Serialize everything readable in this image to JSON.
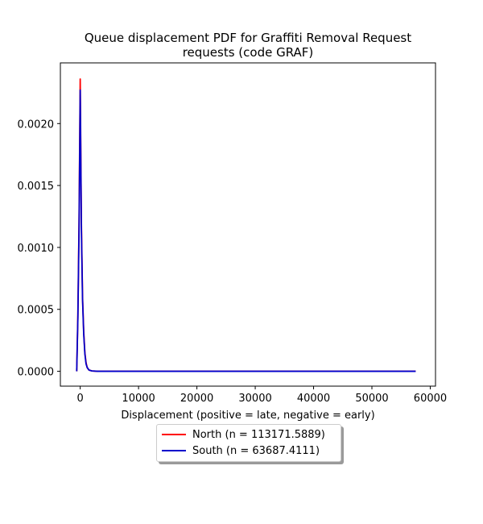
{
  "chart_data": {
    "type": "line",
    "title": "Queue displacement PDF for Graffiti Removal Request\nrequests (code GRAF)",
    "xlabel": "Displacement (positive = late, negative = early)",
    "ylabel": "",
    "xlim": [
      -3400,
      60900
    ],
    "ylim": [
      -0.00012,
      0.00249
    ],
    "xticks": [
      0,
      10000,
      20000,
      30000,
      40000,
      50000,
      60000
    ],
    "yticks": [
      0.0,
      0.0005,
      0.001,
      0.0015,
      0.002
    ],
    "xtick_labels": [
      "0",
      "10000",
      "20000",
      "30000",
      "40000",
      "50000",
      "60000"
    ],
    "ytick_labels": [
      "0.0000",
      "0.0005",
      "0.0010",
      "0.0015",
      "0.0020"
    ],
    "grid": false,
    "legend_position": "below",
    "series": [
      {
        "name": "North (n = 113171.5889)",
        "color": "#ff0000",
        "x": [
          -600,
          -400,
          -200,
          0,
          200,
          400,
          600,
          800,
          1000,
          1200,
          1500,
          2000,
          3000,
          5000,
          10000,
          20000,
          30000,
          40000,
          50000,
          57500
        ],
        "y": [
          0.0,
          0.00045,
          0.0012,
          0.00236,
          0.0012,
          0.0006,
          0.00032,
          0.00015,
          7e-05,
          3e-05,
          1e-05,
          3e-06,
          0.0,
          0.0,
          0.0,
          0.0,
          0.0,
          0.0,
          0.0,
          0.0
        ]
      },
      {
        "name": "South (n = 63687.4111)",
        "color": "#0000cc",
        "x": [
          -600,
          -400,
          -200,
          0,
          200,
          400,
          600,
          800,
          1000,
          1200,
          1500,
          2000,
          3000,
          5000,
          10000,
          20000,
          30000,
          40000,
          50000,
          57500
        ],
        "y": [
          0.0,
          0.00043,
          0.00115,
          0.00227,
          0.00115,
          0.00058,
          0.0003,
          0.00014,
          6e-05,
          3e-05,
          1e-05,
          3e-06,
          0.0,
          0.0,
          0.0,
          0.0,
          0.0,
          0.0,
          0.0,
          0.0
        ]
      }
    ]
  }
}
